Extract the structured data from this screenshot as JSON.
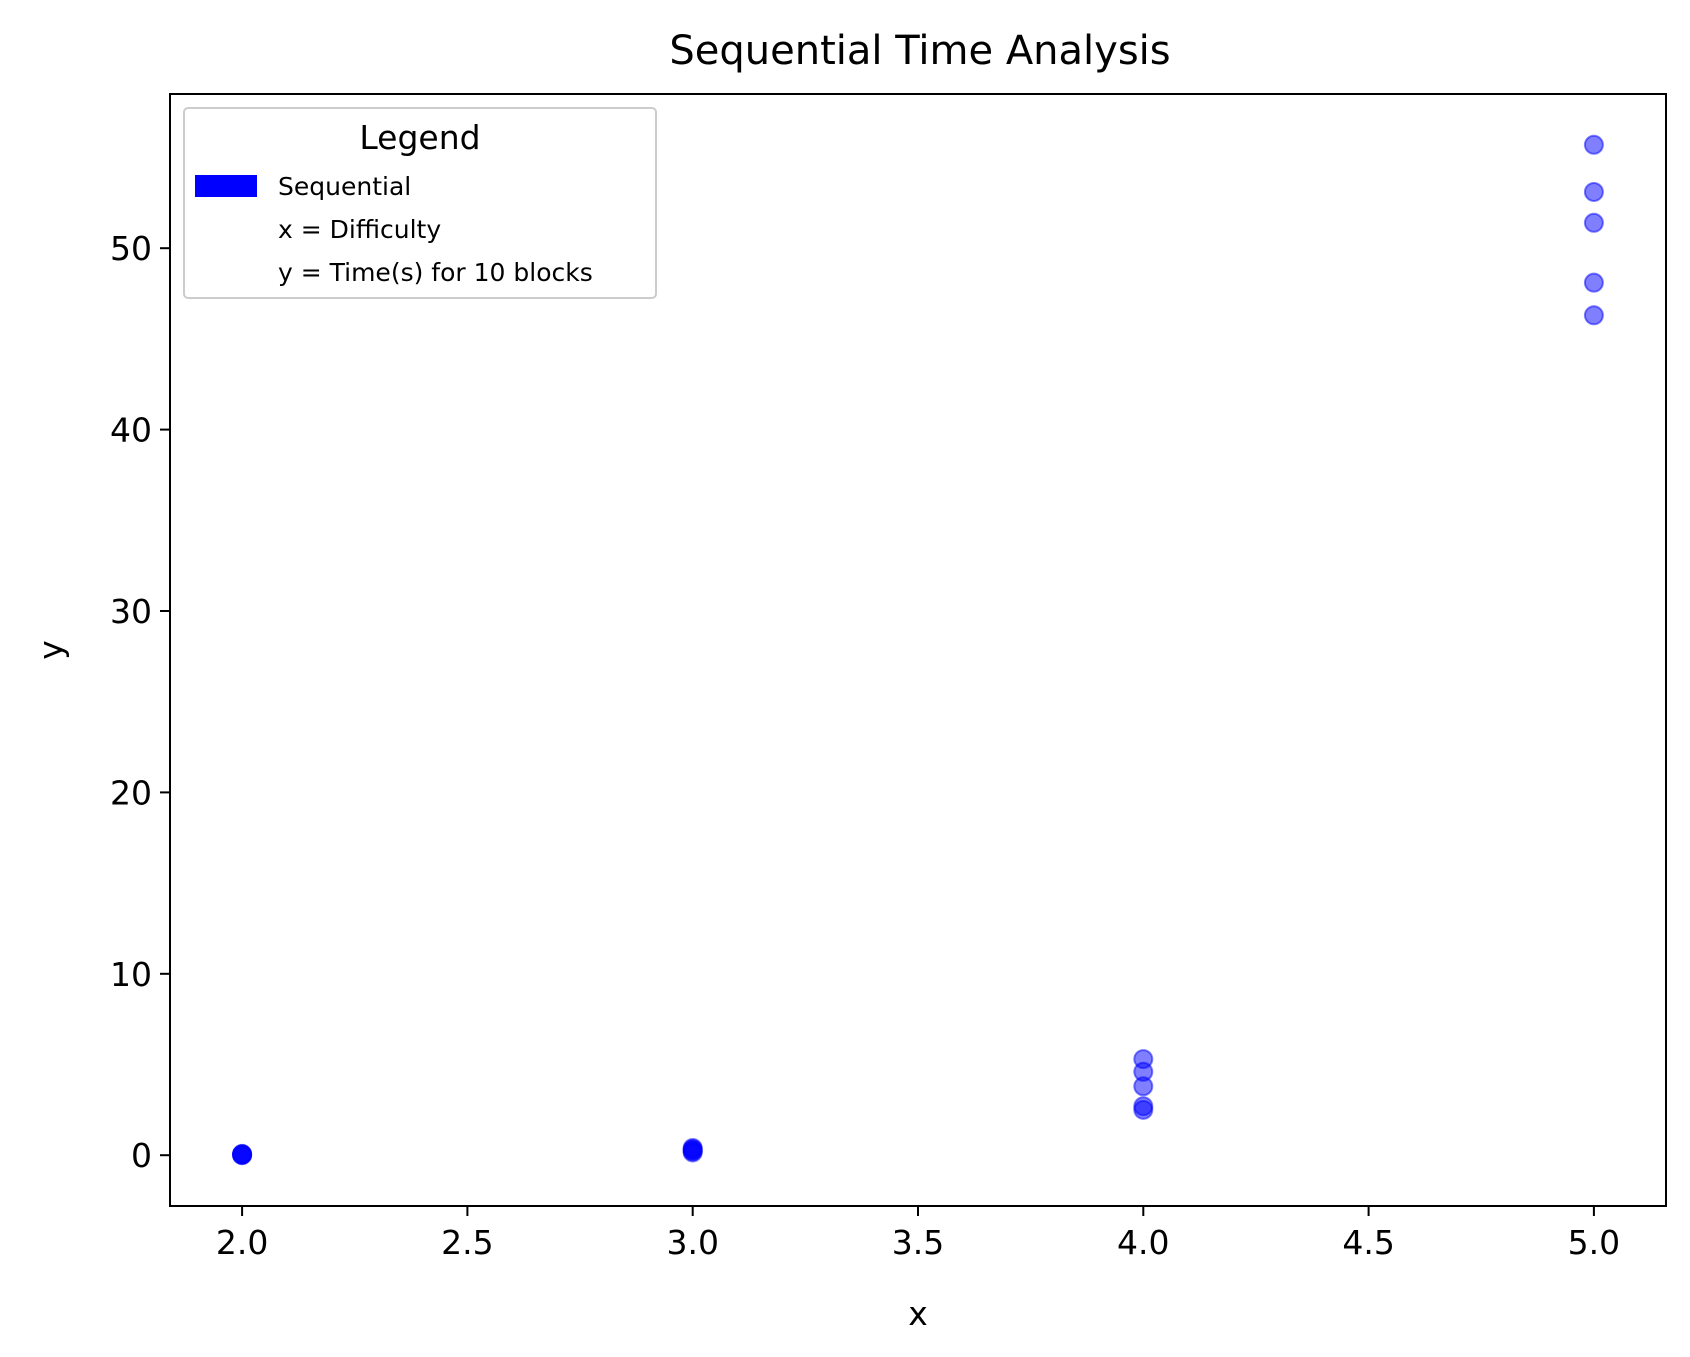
{
  "chart_data": {
    "type": "scatter",
    "title": "Sequential Time Analysis",
    "xlabel": "x",
    "ylabel": "y",
    "xlim": [
      1.84,
      5.16
    ],
    "ylim": [
      -2.8,
      58.5
    ],
    "xticks": [
      2.0,
      2.5,
      3.0,
      3.5,
      4.0,
      4.5,
      5.0
    ],
    "xtick_labels": [
      "2.0",
      "2.5",
      "3.0",
      "3.5",
      "4.0",
      "4.5",
      "5.0"
    ],
    "yticks": [
      0,
      10,
      20,
      30,
      40,
      50
    ],
    "ytick_labels": [
      "0",
      "10",
      "20",
      "30",
      "40",
      "50"
    ],
    "grid": false,
    "legend": {
      "title": "Legend",
      "placement": "upper-left",
      "entries": [
        {
          "label": "Sequential",
          "swatch": true,
          "color": "#0000ff"
        },
        {
          "label": "x = Difficulty",
          "swatch": false
        },
        {
          "label": "y = Time(s) for 10 blocks",
          "swatch": false
        }
      ]
    },
    "series": [
      {
        "name": "Sequential",
        "color": "#0000ff",
        "alpha": 0.5,
        "points": [
          {
            "x": 2,
            "y": 0.0
          },
          {
            "x": 2,
            "y": 0.02
          },
          {
            "x": 2,
            "y": 0.04
          },
          {
            "x": 2,
            "y": 0.05
          },
          {
            "x": 2,
            "y": 0.07
          },
          {
            "x": 3,
            "y": 0.15
          },
          {
            "x": 3,
            "y": 0.22
          },
          {
            "x": 3,
            "y": 0.28
          },
          {
            "x": 3,
            "y": 0.33
          },
          {
            "x": 3,
            "y": 0.4
          },
          {
            "x": 4,
            "y": 2.5
          },
          {
            "x": 4,
            "y": 2.7
          },
          {
            "x": 4,
            "y": 3.8
          },
          {
            "x": 4,
            "y": 4.6
          },
          {
            "x": 4,
            "y": 5.3
          },
          {
            "x": 5,
            "y": 46.3
          },
          {
            "x": 5,
            "y": 48.1
          },
          {
            "x": 5,
            "y": 51.4
          },
          {
            "x": 5,
            "y": 53.1
          },
          {
            "x": 5,
            "y": 55.7
          }
        ]
      }
    ]
  }
}
